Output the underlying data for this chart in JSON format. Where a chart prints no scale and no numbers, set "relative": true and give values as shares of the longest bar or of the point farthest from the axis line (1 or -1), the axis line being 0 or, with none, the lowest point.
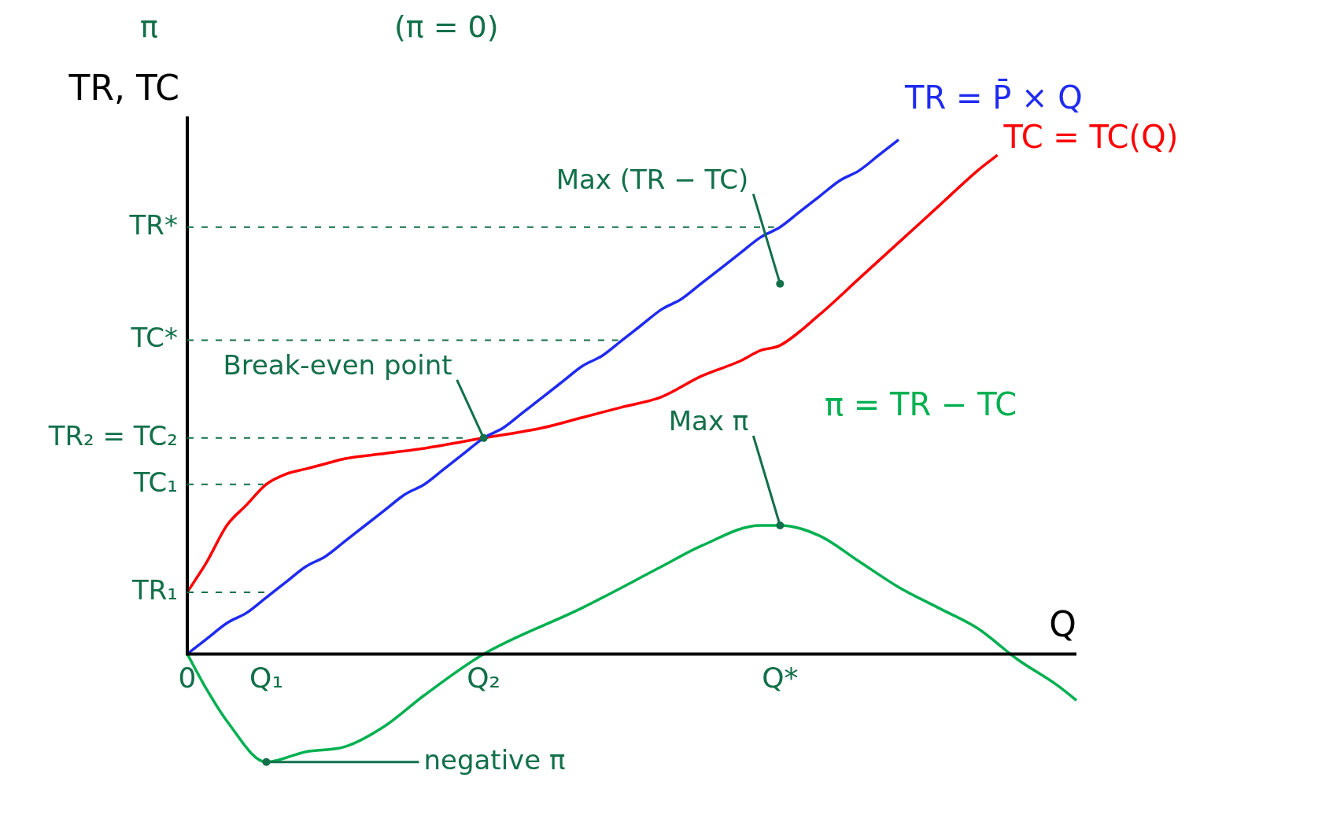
{
  "chart_data": {
    "type": "line",
    "relative": true,
    "ylabel": "TR, TC",
    "xlabel": "Q",
    "legend": false,
    "grid": false,
    "marker": "none",
    "line_style": "solid",
    "categories": [
      "0",
      null,
      null,
      null,
      "Q₁",
      null,
      null,
      null,
      null,
      null,
      null,
      null,
      null,
      null,
      null,
      "Q₂",
      null,
      null,
      null,
      null,
      null,
      null,
      null,
      null,
      null,
      null,
      null,
      null,
      null,
      null,
      "Q*",
      null,
      null,
      null,
      null,
      null,
      null,
      null,
      null,
      null,
      null,
      null,
      null,
      null,
      null,
      null
    ],
    "series": [
      {
        "name": "TR = P̄ × Q",
        "color": "#1f2bf0",
        "values": [
          0,
          0.03,
          0.06,
          0.08,
          0.11,
          0.14,
          0.17,
          0.19,
          0.22,
          0.25,
          0.28,
          0.31,
          0.33,
          0.36,
          0.39,
          0.42,
          0.44,
          0.47,
          0.5,
          0.53,
          0.56,
          0.58,
          0.61,
          0.64,
          0.67,
          0.69,
          0.72,
          0.75,
          0.78,
          0.81,
          0.83,
          0.86,
          0.89,
          0.92,
          0.94,
          0.97,
          1,
          null,
          null,
          null,
          null,
          null,
          null,
          null,
          null,
          null
        ]
      },
      {
        "name": "TC = TC(Q)",
        "color": "#ff0000",
        "values": [
          0.12,
          0.18,
          0.25,
          0.29,
          0.33,
          0.35,
          0.36,
          0.37,
          0.38,
          null,
          0.39,
          null,
          0.4,
          null,
          null,
          0.42,
          null,
          null,
          0.44,
          null,
          0.46,
          null,
          0.48,
          null,
          0.5,
          null,
          0.54,
          null,
          0.57,
          0.59,
          0.6,
          null,
          0.66,
          null,
          0.73,
          null,
          0.8,
          null,
          0.87,
          null,
          0.94,
          0.97,
          null,
          null,
          null,
          null
        ]
      },
      {
        "name": "π = TR − TC",
        "color": "#00b050",
        "values": [
          0,
          -0.07,
          -0.13,
          null,
          -0.21,
          null,
          -0.19,
          null,
          -0.18,
          null,
          -0.14,
          null,
          -0.08,
          null,
          null,
          0,
          null,
          null,
          null,
          null,
          0.09,
          null,
          null,
          null,
          0.17,
          null,
          0.21,
          null,
          null,
          0.25,
          0.25,
          null,
          0.23,
          null,
          0.18,
          null,
          0.13,
          null,
          0.09,
          null,
          0.05,
          null,
          -0.01,
          null,
          -0.06,
          -0.09
        ]
      }
    ],
    "ref_lines": [
      {
        "axis": "y",
        "value": 0.83,
        "label": "TR*",
        "line_style": "dashed"
      },
      {
        "axis": "y",
        "value": 0.61,
        "label": "TC*",
        "line_style": "dashed"
      },
      {
        "axis": "y",
        "value": 0.42,
        "label": "TR₂ = TC₂",
        "line_style": "dashed"
      },
      {
        "axis": "y",
        "value": 0.33,
        "label": "TC₁",
        "line_style": "dashed"
      },
      {
        "axis": "y",
        "value": 0.12,
        "label": "TR₁",
        "line_style": "dashed"
      }
    ],
    "annotations": [
      "π",
      "(π = 0)",
      {
        "text": "Break-even point",
        "x": "Q₂",
        "y": 0.42
      },
      {
        "text": "Max (TR − TC)",
        "x": "Q*",
        "y": 0.72
      },
      {
        "text": "Max π",
        "x": "Q*",
        "y": 0.25
      },
      {
        "text": "negative π",
        "x": "Q₁",
        "y": -0.21
      }
    ]
  }
}
